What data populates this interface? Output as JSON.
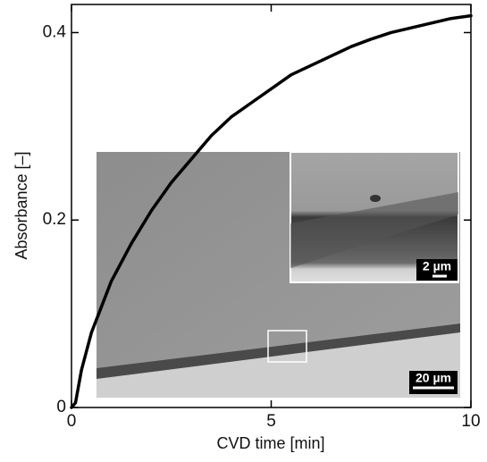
{
  "chart_data": {
    "type": "line",
    "x_label": "CVD time [min]",
    "y_label": "Absorbance [–]",
    "x": [
      0,
      0.1,
      0.25,
      0.5,
      1,
      1.5,
      2,
      2.5,
      3,
      3.5,
      4,
      4.5,
      5,
      5.5,
      6,
      6.5,
      7,
      7.5,
      8,
      8.5,
      9,
      9.5,
      10
    ],
    "values": [
      0,
      0.005,
      0.04,
      0.08,
      0.135,
      0.175,
      0.21,
      0.24,
      0.265,
      0.29,
      0.31,
      0.325,
      0.34,
      0.355,
      0.365,
      0.375,
      0.385,
      0.393,
      0.4,
      0.405,
      0.41,
      0.415,
      0.418
    ],
    "color": "#000000",
    "xlim": [
      0,
      10
    ],
    "ylim": [
      0,
      0.43
    ],
    "xticks": [
      0,
      5,
      10
    ],
    "yticks": [
      0,
      0.2,
      0.4
    ],
    "inset_scale_bars": [
      "20 µm",
      "2 µm"
    ]
  }
}
